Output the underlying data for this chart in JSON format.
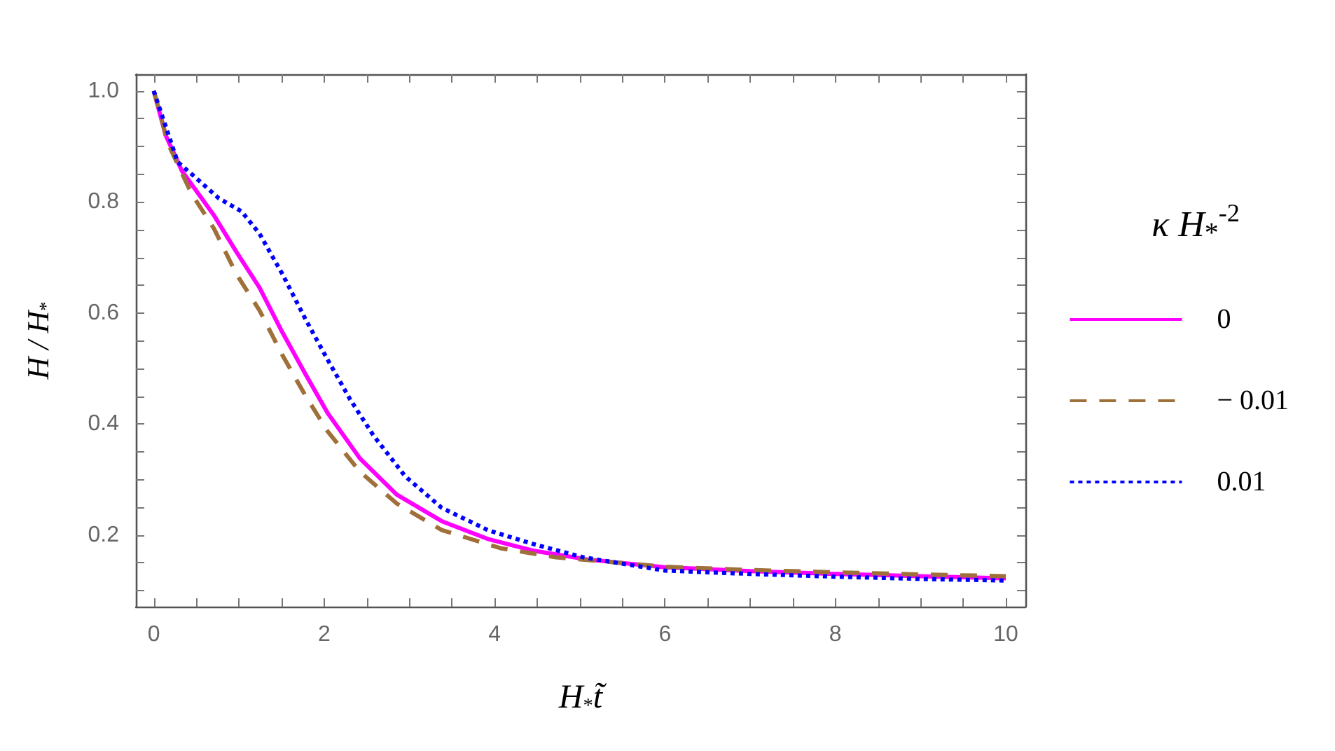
{
  "chart_data": {
    "type": "line",
    "xlabel": "H$_{*}$t̃",
    "ylabel": "H / H$_{*}$",
    "legend_title": "κ H$_{*}$$^{-2}$",
    "xlim": [
      -0.21,
      10.23
    ],
    "ylim": [
      0.071,
      1.03
    ],
    "xticks": [
      0,
      {
        "value": 0.5,
        "label": null
      },
      {
        "value": 1,
        "label": null
      },
      {
        "value": 1.5,
        "label": null
      },
      2,
      {
        "value": 2.5,
        "label": null
      },
      {
        "value": 3,
        "label": null
      },
      {
        "value": 3.5,
        "label": null
      },
      4,
      {
        "value": 4.5,
        "label": null
      },
      {
        "value": 5,
        "label": null
      },
      {
        "value": 5.5,
        "label": null
      },
      6,
      {
        "value": 6.5,
        "label": null
      },
      {
        "value": 7,
        "label": null
      },
      {
        "value": 7.5,
        "label": null
      },
      8,
      {
        "value": 8.5,
        "label": null
      },
      {
        "value": 9,
        "label": null
      },
      {
        "value": 9.5,
        "label": null
      },
      10
    ],
    "yticks": [
      {
        "value": 0.1,
        "label": null
      },
      {
        "value": 0.15,
        "label": null
      },
      0.2,
      {
        "value": 0.25,
        "label": null
      },
      {
        "value": 0.3,
        "label": null
      },
      {
        "value": 0.35,
        "label": null
      },
      0.4,
      {
        "value": 0.45,
        "label": null
      },
      {
        "value": 0.5,
        "label": null
      },
      {
        "value": 0.55,
        "label": null
      },
      0.6,
      {
        "value": 0.65,
        "label": null
      },
      {
        "value": 0.7,
        "label": null
      },
      {
        "value": 0.75,
        "label": null
      },
      0.8,
      {
        "value": 0.85,
        "label": null
      },
      {
        "value": 0.9,
        "label": null
      },
      {
        "value": 0.95,
        "label": null
      },
      {
        "value": 1,
        "label": "1.0"
      }
    ],
    "grid": false,
    "legend": "right",
    "marker": "none",
    "series": [
      {
        "name": "0",
        "color": "#ff00ff",
        "line_style": "solid",
        "x": [
          0,
          0.14,
          0.33,
          0.71,
          0.97,
          1.24,
          1.51,
          1.78,
          2.04,
          2.42,
          2.85,
          3.38,
          3.92,
          4.45,
          5.09,
          6,
          7,
          8,
          9,
          10
        ],
        "values": [
          1.0,
          0.92,
          0.856,
          0.775,
          0.71,
          0.646,
          0.565,
          0.49,
          0.42,
          0.338,
          0.273,
          0.225,
          0.193,
          0.172,
          0.156,
          0.142,
          0.135,
          0.13,
          0.126,
          0.122
        ]
      },
      {
        "name": "− 0.01",
        "color": "#a0703a",
        "line_style": "dashed",
        "x": [
          0,
          0.17,
          0.44,
          0.71,
          0.97,
          1.24,
          1.51,
          1.78,
          2.04,
          2.42,
          2.85,
          3.38,
          4.08,
          4.72,
          6,
          7,
          8,
          9,
          10
        ],
        "values": [
          1.0,
          0.904,
          0.816,
          0.751,
          0.67,
          0.605,
          0.524,
          0.451,
          0.387,
          0.314,
          0.257,
          0.209,
          0.176,
          0.16,
          0.143,
          0.137,
          0.133,
          0.129,
          0.126
        ]
      },
      {
        "name": "0.01",
        "color": "#0000ff",
        "line_style": "dotted",
        "x": [
          0,
          0.28,
          0.49,
          0.76,
          1.03,
          1.24,
          1.51,
          1.78,
          2.04,
          2.31,
          2.58,
          2.95,
          3.38,
          3.92,
          4.45,
          5.04,
          6,
          7,
          8,
          9,
          10
        ],
        "values": [
          1.0,
          0.872,
          0.844,
          0.807,
          0.783,
          0.743,
          0.67,
          0.589,
          0.516,
          0.443,
          0.379,
          0.306,
          0.249,
          0.209,
          0.184,
          0.16,
          0.136,
          0.13,
          0.125,
          0.121,
          0.118
        ]
      }
    ]
  }
}
